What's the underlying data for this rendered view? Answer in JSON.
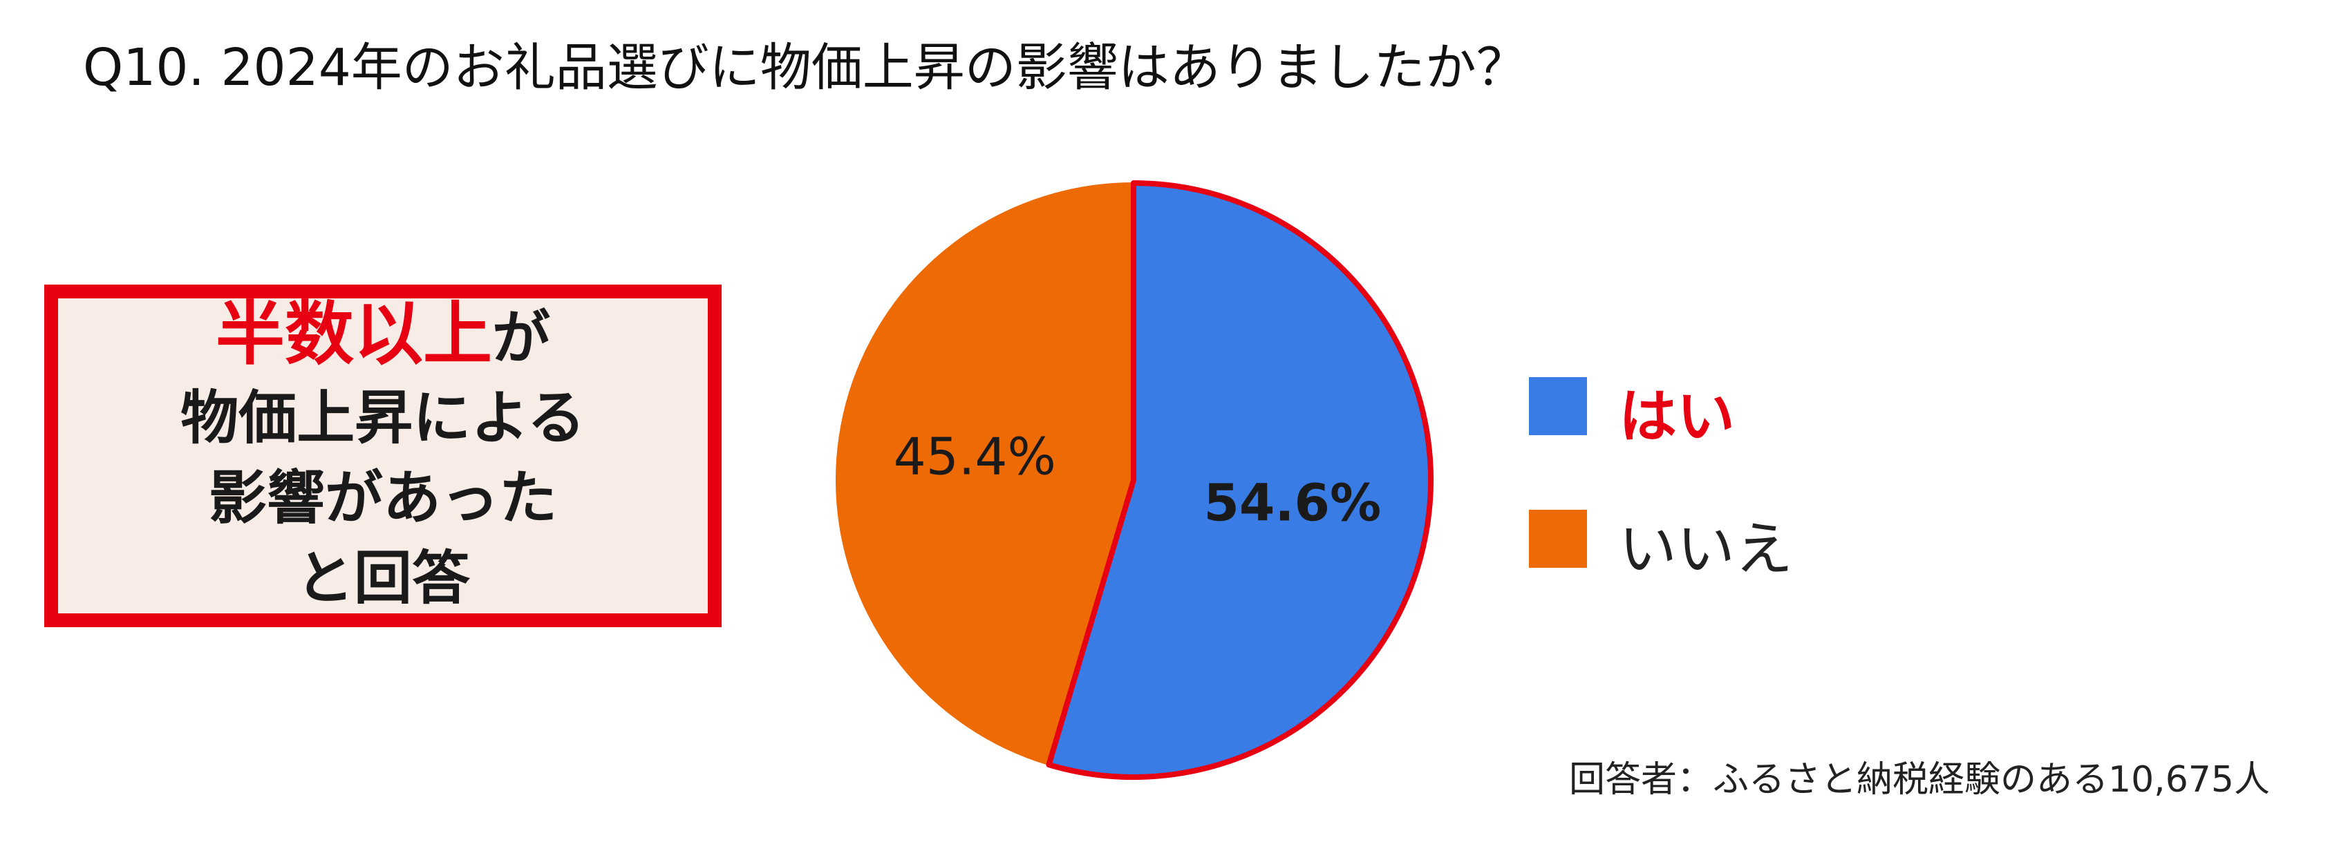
{
  "title": "Q10. 2024年のお礼品選びに物価上昇の影響はありましたか？",
  "callout": {
    "highlight": "半数以上",
    "highlight_tail": "が",
    "line2": "物価上昇による",
    "line3": "影響があった",
    "line4": "と回答"
  },
  "note": "回答者：ふるさと納税経験のある10,675人",
  "colors": {
    "yes": "#3a7ce6",
    "no": "#ee6a05",
    "accent_red": "#e60012",
    "callout_bg": "#f8ede6"
  },
  "chart_data": {
    "type": "pie",
    "slices": [
      {
        "label": "はい",
        "value": 54.6,
        "display": "54.6%",
        "color": "#3a7ce6"
      },
      {
        "label": "いいえ",
        "value": 45.4,
        "display": "45.4%",
        "color": "#ee6a05"
      }
    ],
    "start": "12 o'clock",
    "direction": "clockwise",
    "legend": [
      "はい",
      "いいえ"
    ],
    "legend_position": "right"
  }
}
